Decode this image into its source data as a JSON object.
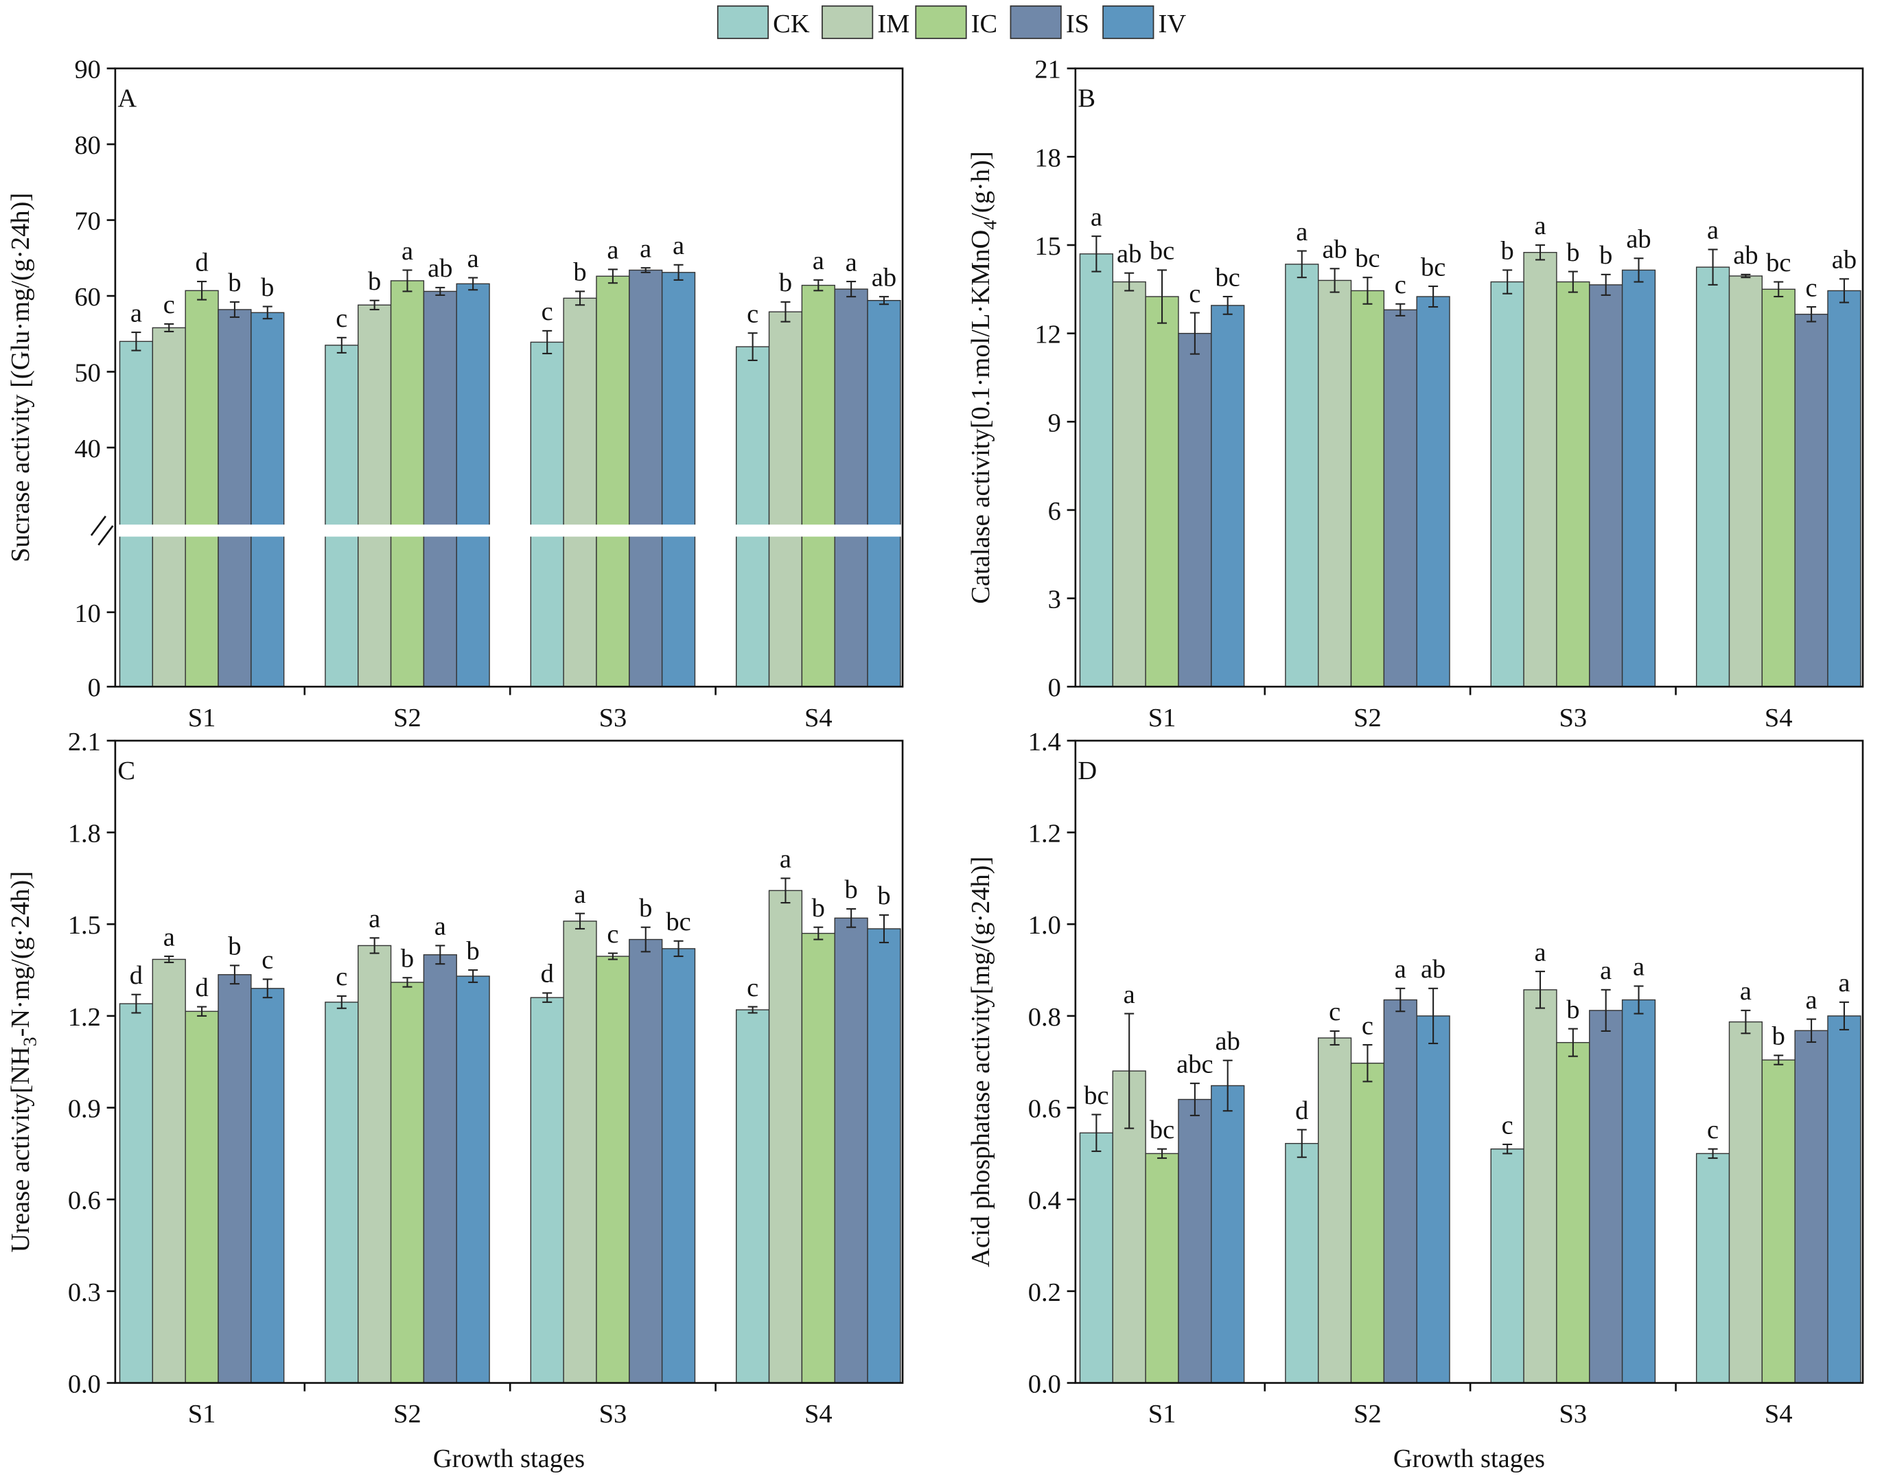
{
  "legend": {
    "names": [
      "CK",
      "IM",
      "IC",
      "IS",
      "IV"
    ],
    "colors": [
      "#9ccfca",
      "#b9cfb3",
      "#a9d18c",
      "#7088a9",
      "#5c96c0"
    ]
  },
  "chart_data": [
    {
      "type": "bar",
      "panel": "A",
      "ylabel": [
        "Sucrase activity [(Glu·mg/(g·24h)]"
      ],
      "categories": [
        "S1",
        "S2",
        "S3",
        "S4"
      ],
      "ylim": [
        0,
        90
      ],
      "ybreak": [
        20,
        30
      ],
      "yticks": [
        0,
        10,
        40,
        50,
        60,
        70,
        80,
        90
      ],
      "series": [
        {
          "values": [
            54,
            53.5,
            53.9,
            53.3
          ],
          "errors": [
            1.2,
            1.0,
            1.5,
            1.8
          ],
          "sig_labels": [
            "a",
            "c",
            "c",
            "c"
          ]
        },
        {
          "values": [
            55.8,
            58.8,
            59.7,
            57.9
          ],
          "errors": [
            0.5,
            0.6,
            0.9,
            1.3
          ],
          "sig_labels": [
            "c",
            "b",
            "b",
            "b"
          ]
        },
        {
          "values": [
            60.7,
            62,
            62.6,
            61.4
          ],
          "errors": [
            1.2,
            1.4,
            0.9,
            0.7
          ],
          "sig_labels": [
            "d",
            "a",
            "a",
            "a"
          ]
        },
        {
          "values": [
            58.2,
            60.6,
            63.4,
            60.9
          ],
          "errors": [
            1.0,
            0.5,
            0.3,
            1.0
          ],
          "sig_labels": [
            "b",
            "ab",
            "a",
            "a"
          ]
        },
        {
          "values": [
            57.8,
            61.6,
            63.1,
            59.4
          ],
          "errors": [
            0.8,
            0.8,
            1.0,
            0.5
          ],
          "sig_labels": [
            "b",
            "a",
            "a",
            "ab"
          ]
        }
      ]
    },
    {
      "type": "bar",
      "panel": "B",
      "ylabel": [
        "Catalase activity[0.1·mol/L·KMnO",
        "4",
        "/(g·h)]"
      ],
      "categories": [
        "S1",
        "S2",
        "S3",
        "S4"
      ],
      "ylim": [
        0,
        21
      ],
      "yticks": [
        0,
        3,
        6,
        9,
        12,
        15,
        18,
        21
      ],
      "series": [
        {
          "values": [
            14.7,
            14.35,
            13.75,
            14.25
          ],
          "errors": [
            0.6,
            0.45,
            0.4,
            0.6
          ],
          "sig_labels": [
            "a",
            "a",
            "b",
            "a"
          ]
        },
        {
          "values": [
            13.75,
            13.8,
            14.75,
            13.95
          ],
          "errors": [
            0.3,
            0.4,
            0.25,
            0.05
          ],
          "sig_labels": [
            "ab",
            "ab",
            "a",
            "ab"
          ]
        },
        {
          "values": [
            13.25,
            13.45,
            13.75,
            13.5
          ],
          "errors": [
            0.9,
            0.45,
            0.35,
            0.25
          ],
          "sig_labels": [
            "bc",
            "bc",
            "b",
            "bc"
          ]
        },
        {
          "values": [
            12.0,
            12.8,
            13.65,
            12.65
          ],
          "errors": [
            0.7,
            0.2,
            0.35,
            0.25
          ],
          "sig_labels": [
            "c",
            "c",
            "b",
            "c"
          ]
        },
        {
          "values": [
            12.95,
            13.25,
            14.15,
            13.45
          ],
          "errors": [
            0.3,
            0.35,
            0.4,
            0.4
          ],
          "sig_labels": [
            "bc",
            "bc",
            "ab",
            "ab"
          ]
        }
      ]
    },
    {
      "type": "bar",
      "panel": "C",
      "ylabel": [
        "Urease activity[NH",
        "3",
        "-N·mg/(g·24h)]"
      ],
      "xlabel": "Growth stages",
      "categories": [
        "S1",
        "S2",
        "S3",
        "S4"
      ],
      "ylim": [
        0,
        2.1
      ],
      "yticks": [
        {
          "value": 0,
          "label": "0.0"
        },
        0.3,
        0.6,
        0.9,
        1.2,
        1.5,
        1.8,
        2.1
      ],
      "series": [
        {
          "values": [
            1.24,
            1.245,
            1.26,
            1.22
          ],
          "errors": [
            0.03,
            0.02,
            0.015,
            0.01
          ],
          "sig_labels": [
            "d",
            "c",
            "d",
            "c"
          ]
        },
        {
          "values": [
            1.385,
            1.43,
            1.51,
            1.61
          ],
          "errors": [
            0.01,
            0.025,
            0.025,
            0.04
          ],
          "sig_labels": [
            "a",
            "a",
            "a",
            "a"
          ]
        },
        {
          "values": [
            1.215,
            1.31,
            1.395,
            1.47
          ],
          "errors": [
            0.015,
            0.015,
            0.01,
            0.02
          ],
          "sig_labels": [
            "d",
            "b",
            "c",
            "b"
          ]
        },
        {
          "values": [
            1.335,
            1.4,
            1.45,
            1.52
          ],
          "errors": [
            0.03,
            0.03,
            0.04,
            0.03
          ],
          "sig_labels": [
            "b",
            "a",
            "b",
            "b"
          ]
        },
        {
          "values": [
            1.29,
            1.33,
            1.42,
            1.485
          ],
          "errors": [
            0.03,
            0.02,
            0.025,
            0.045
          ],
          "sig_labels": [
            "c",
            "b",
            "bc",
            "b"
          ]
        }
      ]
    },
    {
      "type": "bar",
      "panel": "D",
      "ylabel": [
        "Acid phosphatase activity[mg/(g·24h)]"
      ],
      "xlabel": "Growth stages",
      "categories": [
        "S1",
        "S2",
        "S3",
        "S4"
      ],
      "ylim": [
        0,
        1.4
      ],
      "yticks": [
        {
          "value": 0,
          "label": "0.0"
        },
        0.2,
        0.4,
        0.6,
        0.8,
        {
          "value": 1,
          "label": "1.0"
        },
        1.2,
        1.4
      ],
      "series": [
        {
          "values": [
            0.545,
            0.522,
            0.51,
            0.5
          ],
          "errors": [
            0.04,
            0.03,
            0.01,
            0.01
          ],
          "sig_labels": [
            "bc",
            "d",
            "c",
            "c"
          ]
        },
        {
          "values": [
            0.68,
            0.752,
            0.857,
            0.787
          ],
          "errors": [
            0.125,
            0.015,
            0.04,
            0.025
          ],
          "sig_labels": [
            "a",
            "c",
            "a",
            "a"
          ]
        },
        {
          "values": [
            0.5,
            0.697,
            0.742,
            0.704
          ],
          "errors": [
            0.01,
            0.04,
            0.03,
            0.01
          ],
          "sig_labels": [
            "bc",
            "c",
            "b",
            "b"
          ]
        },
        {
          "values": [
            0.618,
            0.835,
            0.812,
            0.768
          ],
          "errors": [
            0.035,
            0.025,
            0.045,
            0.025
          ],
          "sig_labels": [
            "abc",
            "a",
            "a",
            "a"
          ]
        },
        {
          "values": [
            0.648,
            0.8,
            0.835,
            0.8
          ],
          "errors": [
            0.055,
            0.06,
            0.03,
            0.03
          ],
          "sig_labels": [
            "ab",
            "ab",
            "a",
            "a"
          ]
        }
      ]
    }
  ]
}
